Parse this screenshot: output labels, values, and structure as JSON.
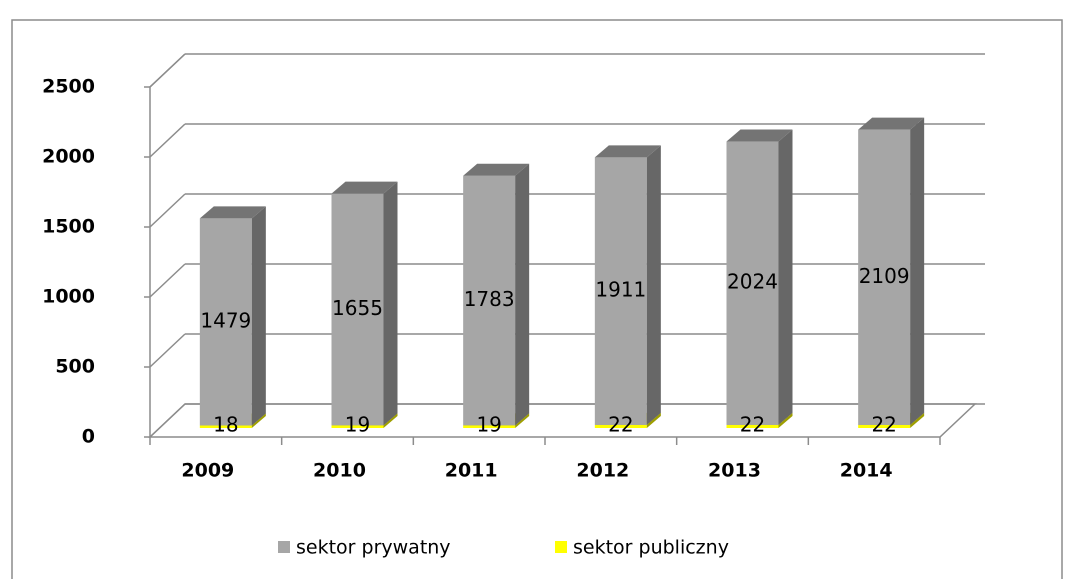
{
  "chart_data": {
    "type": "bar3d_stacked",
    "categories": [
      "2009",
      "2010",
      "2011",
      "2012",
      "2013",
      "2014"
    ],
    "series": [
      {
        "name": "sektor prywatny",
        "color": "#a6a6a6",
        "values": [
          1479,
          1655,
          1783,
          1911,
          2024,
          2109
        ]
      },
      {
        "name": "sektor publiczny",
        "color": "#ffff00",
        "values": [
          18,
          19,
          19,
          22,
          22,
          22
        ]
      }
    ],
    "ylim": [
      0,
      2500
    ],
    "yticks": [
      0,
      500,
      1000,
      1500,
      2000,
      2500
    ],
    "grid": true,
    "legend": "bottom"
  }
}
